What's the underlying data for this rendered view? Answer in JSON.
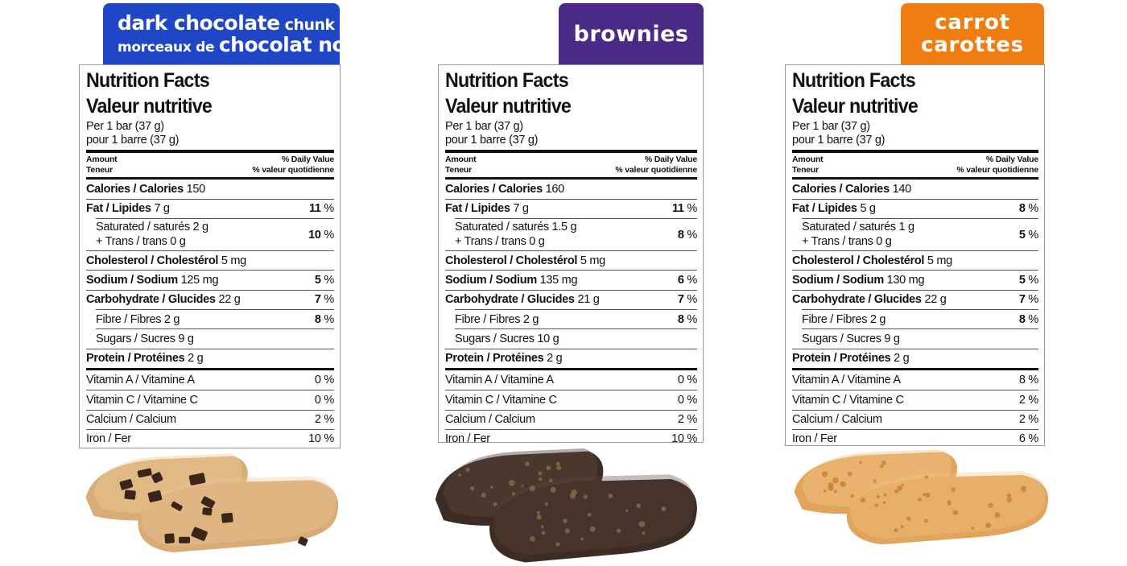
{
  "products": [
    {
      "banner_color": "#1f47c5",
      "banner": {
        "line1_main": "dark chocolate",
        "line1_small": " chunk",
        "line2_small": "morceaux de ",
        "line2_big": "chocolat noir"
      },
      "facts": {
        "title_en": "Nutrition Facts",
        "title_fr": "Valeur nutritive",
        "serving_en": "Per 1 bar (37 g)",
        "serving_fr": "pour 1 barre (37 g)",
        "amount_en": "Amount",
        "amount_fr": "Teneur",
        "dv_en": "% Daily Value",
        "dv_fr": "% valeur quotidienne",
        "calories_label": "Calories / Calories",
        "calories": "150",
        "fat_label": "Fat / Lipides",
        "fat": "7 g",
        "fat_pct": "11",
        "pct_sign": " %",
        "sat_line": "Saturated / saturés 2 g",
        "trans_line": "+ Trans / trans 0 g",
        "sat_pct": "10",
        "chol_label": "Cholesterol / Cholestérol",
        "chol": "5 mg",
        "sodium_label": "Sodium / Sodium",
        "sodium": "125 mg",
        "sodium_pct": "5",
        "carb_label": "Carbohydrate / Glucides",
        "carb": "22 g",
        "carb_pct": "7",
        "fibre_line": "Fibre / Fibres 2 g",
        "fibre_pct": "8",
        "sugars_line": "Sugars / Sucres 9 g",
        "protein_label": "Protein / Protéines",
        "protein": "2 g",
        "vita_label": "Vitamin A / Vitamine A",
        "vita": "0 %",
        "vitc_label": "Vitamin C / Vitamine C",
        "vitc": "0 %",
        "calcium_label": "Calcium / Calcium",
        "calcium": "2 %",
        "iron_label": "Iron / Fer",
        "iron": "10 %"
      }
    },
    {
      "banner_color": "#4a2a86",
      "banner": {
        "single": "brownies"
      },
      "facts": {
        "title_en": "Nutrition Facts",
        "title_fr": "Valeur nutritive",
        "serving_en": "Per 1 bar (37 g)",
        "serving_fr": "pour 1 barre (37 g)",
        "amount_en": "Amount",
        "amount_fr": "Teneur",
        "dv_en": "% Daily Value",
        "dv_fr": "% valeur quotidienne",
        "calories_label": "Calories / Calories",
        "calories": "160",
        "fat_label": "Fat / Lipides",
        "fat": "7 g",
        "fat_pct": "11",
        "pct_sign": " %",
        "sat_line": "Saturated / saturés 1.5 g",
        "trans_line": "+ Trans / trans 0 g",
        "sat_pct": "8",
        "chol_label": "Cholesterol / Cholestérol",
        "chol": "5 mg",
        "sodium_label": "Sodium / Sodium",
        "sodium": "135 mg",
        "sodium_pct": "6",
        "carb_label": "Carbohydrate / Glucides",
        "carb": "21 g",
        "carb_pct": "7",
        "fibre_line": "Fibre / Fibres 2 g",
        "fibre_pct": "8",
        "sugars_line": "Sugars / Sucres 10 g",
        "protein_label": "Protein / Protéines",
        "protein": "2 g",
        "vita_label": "Vitamin A / Vitamine A",
        "vita": "0 %",
        "vitc_label": "Vitamin C / Vitamine C",
        "vitc": "0 %",
        "calcium_label": "Calcium / Calcium",
        "calcium": "2 %",
        "iron_label": "Iron / Fer",
        "iron": "10 %"
      }
    },
    {
      "banner_color": "#f07d10",
      "banner": {
        "line_en": "carrot",
        "line_fr": "carottes"
      },
      "facts": {
        "title_en": "Nutrition Facts",
        "title_fr": "Valeur nutritive",
        "serving_en": "Per 1 bar (37 g)",
        "serving_fr": "pour 1 barre (37 g)",
        "amount_en": "Amount",
        "amount_fr": "Teneur",
        "dv_en": "% Daily Value",
        "dv_fr": "% valeur quotidienne",
        "calories_label": "Calories / Calories",
        "calories": "140",
        "fat_label": "Fat / Lipides",
        "fat": "5 g",
        "fat_pct": "8",
        "pct_sign": " %",
        "sat_line": "Saturated / saturés 1 g",
        "trans_line": "+ Trans / trans 0 g",
        "sat_pct": "5",
        "chol_label": "Cholesterol / Cholestérol",
        "chol": "5 mg",
        "sodium_label": "Sodium / Sodium",
        "sodium": "130 mg",
        "sodium_pct": "5",
        "carb_label": "Carbohydrate / Glucides",
        "carb": "22 g",
        "carb_pct": "7",
        "fibre_line": "Fibre / Fibres 2 g",
        "fibre_pct": "8",
        "sugars_line": "Sugars / Sucres 9 g",
        "protein_label": "Protein / Protéines",
        "protein": "2 g",
        "vita_label": "Vitamin A / Vitamine A",
        "vita": "8 %",
        "vitc_label": "Vitamin C / Vitamine C",
        "vitc": "2 %",
        "calcium_label": "Calcium / Calcium",
        "calcium": "2 %",
        "iron_label": "Iron / Fer",
        "iron": "6 %"
      }
    }
  ],
  "bar_colors": {
    "chocolate_chunk": {
      "base": "#d9ac76",
      "light": "#ecc997",
      "chunk": "#3a2518"
    },
    "brownie": {
      "base": "#3d2c24",
      "light": "#5a463b",
      "speck": "#8a6a4a"
    },
    "carrot": {
      "base": "#e2a45a",
      "light": "#f1c58a",
      "speck": "#c97d38"
    }
  }
}
